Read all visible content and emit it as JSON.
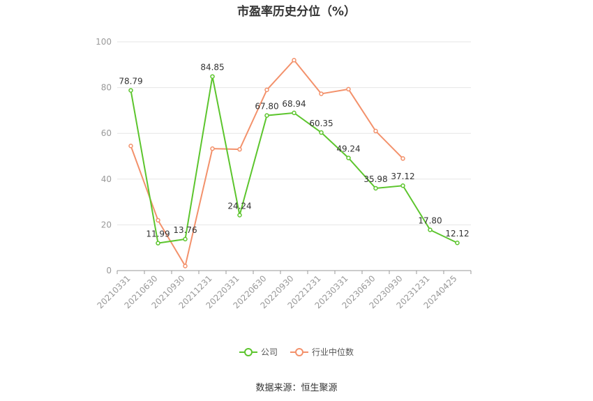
{
  "title": "市盈率历史分位（%）",
  "source": "数据来源：恒生聚源",
  "colors": {
    "company": "#5cc52d",
    "industry": "#f3916b",
    "grid": "#e6e6e6",
    "axis": "#999999"
  },
  "chart_data": {
    "type": "line",
    "title": "市盈率历史分位（%）",
    "categories": [
      "20210331",
      "20210630",
      "20210930",
      "20211231",
      "20220331",
      "20220630",
      "20220930",
      "20221231",
      "20230331",
      "20230630",
      "20230930",
      "20231231",
      "20240425"
    ],
    "ylim": [
      0,
      100
    ],
    "yticks": [
      0,
      20,
      40,
      60,
      80,
      100
    ],
    "grid": true,
    "legend_position": "bottom",
    "series": [
      {
        "name": "公司",
        "values": [
          78.79,
          11.99,
          13.76,
          84.85,
          24.24,
          67.8,
          68.94,
          60.35,
          49.24,
          35.98,
          37.12,
          17.8,
          12.12
        ],
        "labels": [
          "78.79",
          "11.99",
          "13.76",
          "84.85",
          "24.24",
          "67.80",
          "68.94",
          "60.35",
          "49.24",
          "35.98",
          "37.12",
          "17.80",
          "12.12"
        ]
      },
      {
        "name": "行业中位数",
        "values": [
          54.5,
          22.0,
          2.0,
          53.3,
          53.0,
          79.0,
          92.0,
          77.3,
          79.3,
          61.0,
          49.0,
          null,
          null
        ]
      }
    ]
  }
}
